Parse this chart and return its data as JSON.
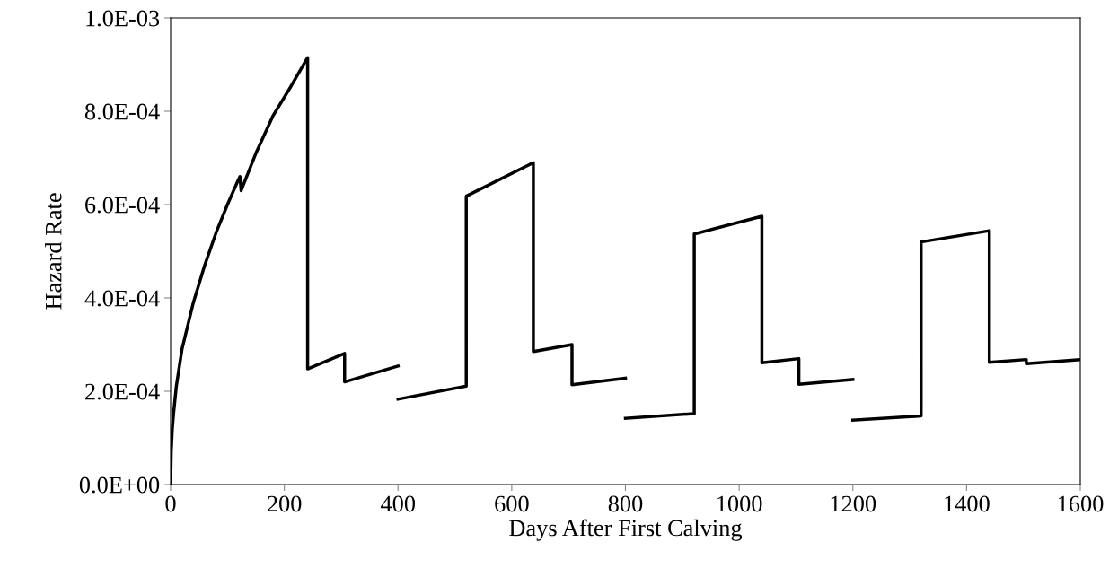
{
  "chart_data": {
    "type": "line",
    "xlabel": "Days After First Calving",
    "ylabel": "Hazard Rate",
    "series": [
      {
        "color": "#000000",
        "x": [
          0,
          1,
          3,
          5,
          10,
          20,
          40,
          60,
          80,
          100,
          118,
          122,
          124,
          150,
          180,
          210,
          241,
          241,
          306,
          306,
          400
        ],
        "values": [
          0,
          7e-05,
          0.00012,
          0.00015,
          0.00021,
          0.00029,
          0.00039,
          0.00047,
          0.00054,
          0.0006,
          0.00065,
          0.00066,
          0.00063,
          0.00071,
          0.00079,
          0.00085,
          0.000915,
          0.000248,
          0.000281,
          0.00022,
          0.000254
        ]
      },
      {
        "color": "#000000",
        "x": [
          400,
          520,
          520,
          638,
          638,
          706,
          706,
          800
        ],
        "values": [
          0.000183,
          0.000211,
          0.000618,
          0.00069,
          0.000285,
          0.0003,
          0.000214,
          0.000228
        ]
      },
      {
        "color": "#000000",
        "x": [
          800,
          921,
          921,
          1040,
          1040,
          1105,
          1105,
          1200
        ],
        "values": [
          0.000142,
          0.000152,
          0.000537,
          0.000575,
          0.000261,
          0.00027,
          0.000215,
          0.000225
        ]
      },
      {
        "color": "#000000",
        "x": [
          1200,
          1320,
          1320,
          1440,
          1440,
          1505,
          1505,
          1600
        ],
        "values": [
          0.000138,
          0.000147,
          0.00052,
          0.000544,
          0.000262,
          0.000268,
          0.000259,
          0.000268
        ]
      }
    ],
    "xlim": [
      0,
      1600
    ],
    "xticks": [
      0,
      200,
      400,
      600,
      800,
      1000,
      1200,
      1400,
      1600
    ],
    "ylim": [
      0,
      0.001
    ],
    "yticks": [
      {
        "value": 0,
        "label": "0.0E+00"
      },
      {
        "value": 0.0002,
        "label": "2.0E-04"
      },
      {
        "value": 0.0004,
        "label": "4.0E-04"
      },
      {
        "value": 0.0006,
        "label": "6.0E-04"
      },
      {
        "value": 0.0008,
        "label": "8.0E-04"
      },
      {
        "value": 0.001,
        "label": "1.0E-03"
      }
    ],
    "grid": false,
    "legend": false,
    "marker": "none",
    "line_style": "solid"
  }
}
